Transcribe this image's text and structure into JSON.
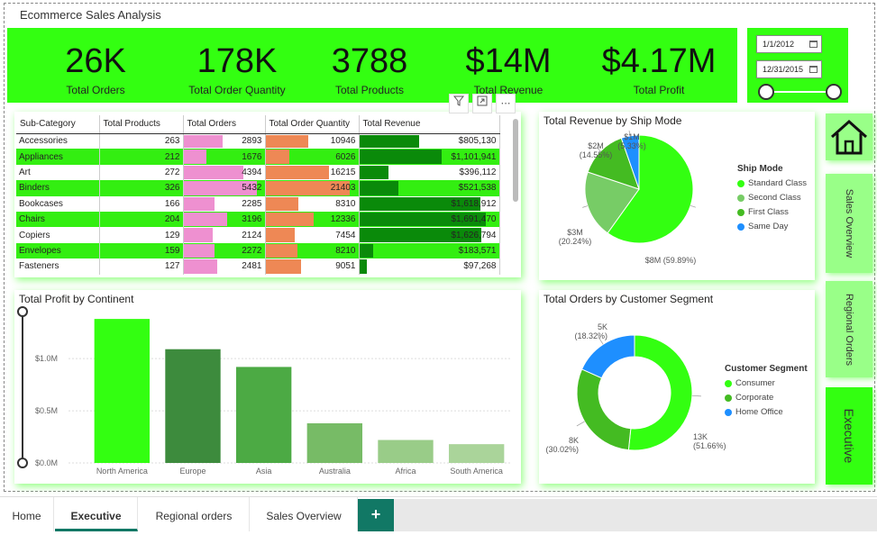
{
  "report": {
    "title": "Ecommerce Sales Analysis"
  },
  "colors": {
    "brand": "#33ff11",
    "tab_accent": "#117865",
    "pink": "#ee90d0",
    "orange": "#ee8855",
    "darkgreen": "#0a8a0a"
  },
  "kpis": [
    {
      "value": "26K",
      "label": "Total Orders"
    },
    {
      "value": "178K",
      "label": "Total Order Quantity"
    },
    {
      "value": "3788",
      "label": "Total Products"
    },
    {
      "value": "$14M",
      "label": "Total Revenue"
    },
    {
      "value": "$4.17M",
      "label": "Total Profit"
    }
  ],
  "date_filter": {
    "start": "1/1/2012",
    "end": "12/31/2015"
  },
  "table": {
    "headers": [
      "Sub-Category",
      "Total Products",
      "Total Orders",
      "Total Order Quantity",
      "Total Revenue"
    ],
    "rows": [
      {
        "sub": "Accessories",
        "products": "263",
        "orders": "2893",
        "qty": "10946",
        "revenue": "$805,130",
        "orders_n": 2893,
        "qty_n": 10946,
        "rev_n": 805130
      },
      {
        "sub": "Appliances",
        "products": "212",
        "orders": "1676",
        "qty": "6026",
        "revenue": "$1,101,941",
        "orders_n": 1676,
        "qty_n": 6026,
        "rev_n": 1101941
      },
      {
        "sub": "Art",
        "products": "272",
        "orders": "4394",
        "qty": "16215",
        "revenue": "$396,112",
        "orders_n": 4394,
        "qty_n": 16215,
        "rev_n": 396112
      },
      {
        "sub": "Binders",
        "products": "326",
        "orders": "5432",
        "qty": "21403",
        "revenue": "$521,538",
        "orders_n": 5432,
        "qty_n": 21403,
        "rev_n": 521538
      },
      {
        "sub": "Bookcases",
        "products": "166",
        "orders": "2285",
        "qty": "8310",
        "revenue": "$1,618,912",
        "orders_n": 2285,
        "qty_n": 8310,
        "rev_n": 1618912
      },
      {
        "sub": "Chairs",
        "products": "204",
        "orders": "3196",
        "qty": "12336",
        "revenue": "$1,691,470",
        "orders_n": 3196,
        "qty_n": 12336,
        "rev_n": 1691470
      },
      {
        "sub": "Copiers",
        "products": "129",
        "orders": "2124",
        "qty": "7454",
        "revenue": "$1,626,794",
        "orders_n": 2124,
        "qty_n": 7454,
        "rev_n": 1626794
      },
      {
        "sub": "Envelopes",
        "products": "159",
        "orders": "2272",
        "qty": "8210",
        "revenue": "$183,571",
        "orders_n": 2272,
        "qty_n": 8210,
        "rev_n": 183571
      },
      {
        "sub": "Fasteners",
        "products": "127",
        "orders": "2481",
        "qty": "9051",
        "revenue": "$97,268",
        "orders_n": 2481,
        "qty_n": 9051,
        "rev_n": 97268
      }
    ]
  },
  "chart_data": [
    {
      "type": "pie",
      "title": "Total Revenue by Ship Mode",
      "legend_title": "Ship Mode",
      "slices": [
        {
          "name": "Standard Class",
          "value": 8,
          "label": "$8M (59.89%)",
          "color": "#33ff11"
        },
        {
          "name": "Second Class",
          "value": 3,
          "label": "$3M (20.24%)",
          "color": "#77cc66"
        },
        {
          "name": "First Class",
          "value": 2,
          "label": "$2M (14.55%)",
          "color": "#44bb22"
        },
        {
          "name": "Same Day",
          "value": 1,
          "label": "$1M (5.33%)",
          "color": "#1e8fff"
        }
      ],
      "percents": [
        59.89,
        20.24,
        14.55,
        5.33
      ]
    },
    {
      "type": "bar",
      "title": "Total Profit by Continent",
      "categories": [
        "North America",
        "Europe",
        "Asia",
        "Australia",
        "Africa",
        "South America"
      ],
      "values": [
        1.38,
        1.09,
        0.92,
        0.38,
        0.22,
        0.18
      ],
      "colors": [
        "#33ff11",
        "#3d8b3d",
        "#4caa44",
        "#77bb66",
        "#99cc88",
        "#aad49a"
      ],
      "ylabel": "",
      "yticks": [
        "$0.0M",
        "$0.5M",
        "$1.0M"
      ],
      "ylim": [
        0,
        1.45
      ]
    },
    {
      "type": "pie",
      "title": "Total Orders by Customer Segment",
      "legend_title": "Customer Segment",
      "slices": [
        {
          "name": "Consumer",
          "value": 51.66,
          "label": "13K (51.66%)",
          "label_lines": [
            "13K",
            "(51.66%)"
          ],
          "color": "#33ff11"
        },
        {
          "name": "Corporate",
          "value": 30.02,
          "label": "8K (30.02%)",
          "label_lines": [
            "8K",
            "(30.02%)"
          ],
          "color": "#44bb22"
        },
        {
          "name": "Home Office",
          "value": 18.32,
          "label": "5K (18.32%)",
          "label_lines": [
            "5K",
            "(18.32%)"
          ],
          "color": "#1e8fff"
        }
      ]
    }
  ],
  "nav": {
    "home_icon": "home-icon",
    "buttons": [
      "Sales Overview",
      "Regional Orders",
      "Executive"
    ]
  },
  "tabs": [
    "Home",
    "Executive",
    "Regional orders",
    "Sales Overview"
  ],
  "tab_add": "+"
}
